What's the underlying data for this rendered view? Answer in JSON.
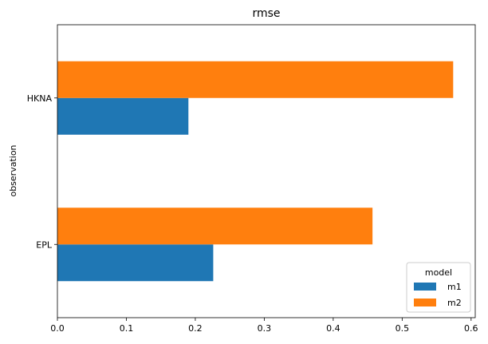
{
  "chart_data": {
    "type": "bar",
    "orientation": "horizontal",
    "title": "rmse",
    "xlabel": "",
    "ylabel": "observation",
    "categories": [
      "EPL",
      "HKNA"
    ],
    "series": [
      {
        "name": "m1",
        "values": [
          0.226,
          0.19
        ],
        "color": "#1f77b4"
      },
      {
        "name": "m2",
        "values": [
          0.457,
          0.574
        ],
        "color": "#ff7f0e"
      }
    ],
    "xlim": [
      0,
      0.606
    ],
    "xticks": [
      0.0,
      0.1,
      0.2,
      0.3,
      0.4,
      0.5,
      0.6
    ],
    "xtick_labels": [
      "0.0",
      "0.1",
      "0.2",
      "0.3",
      "0.4",
      "0.5",
      "0.6"
    ],
    "grid": false,
    "legend": {
      "title": "model",
      "placement": "bottom-right"
    }
  }
}
